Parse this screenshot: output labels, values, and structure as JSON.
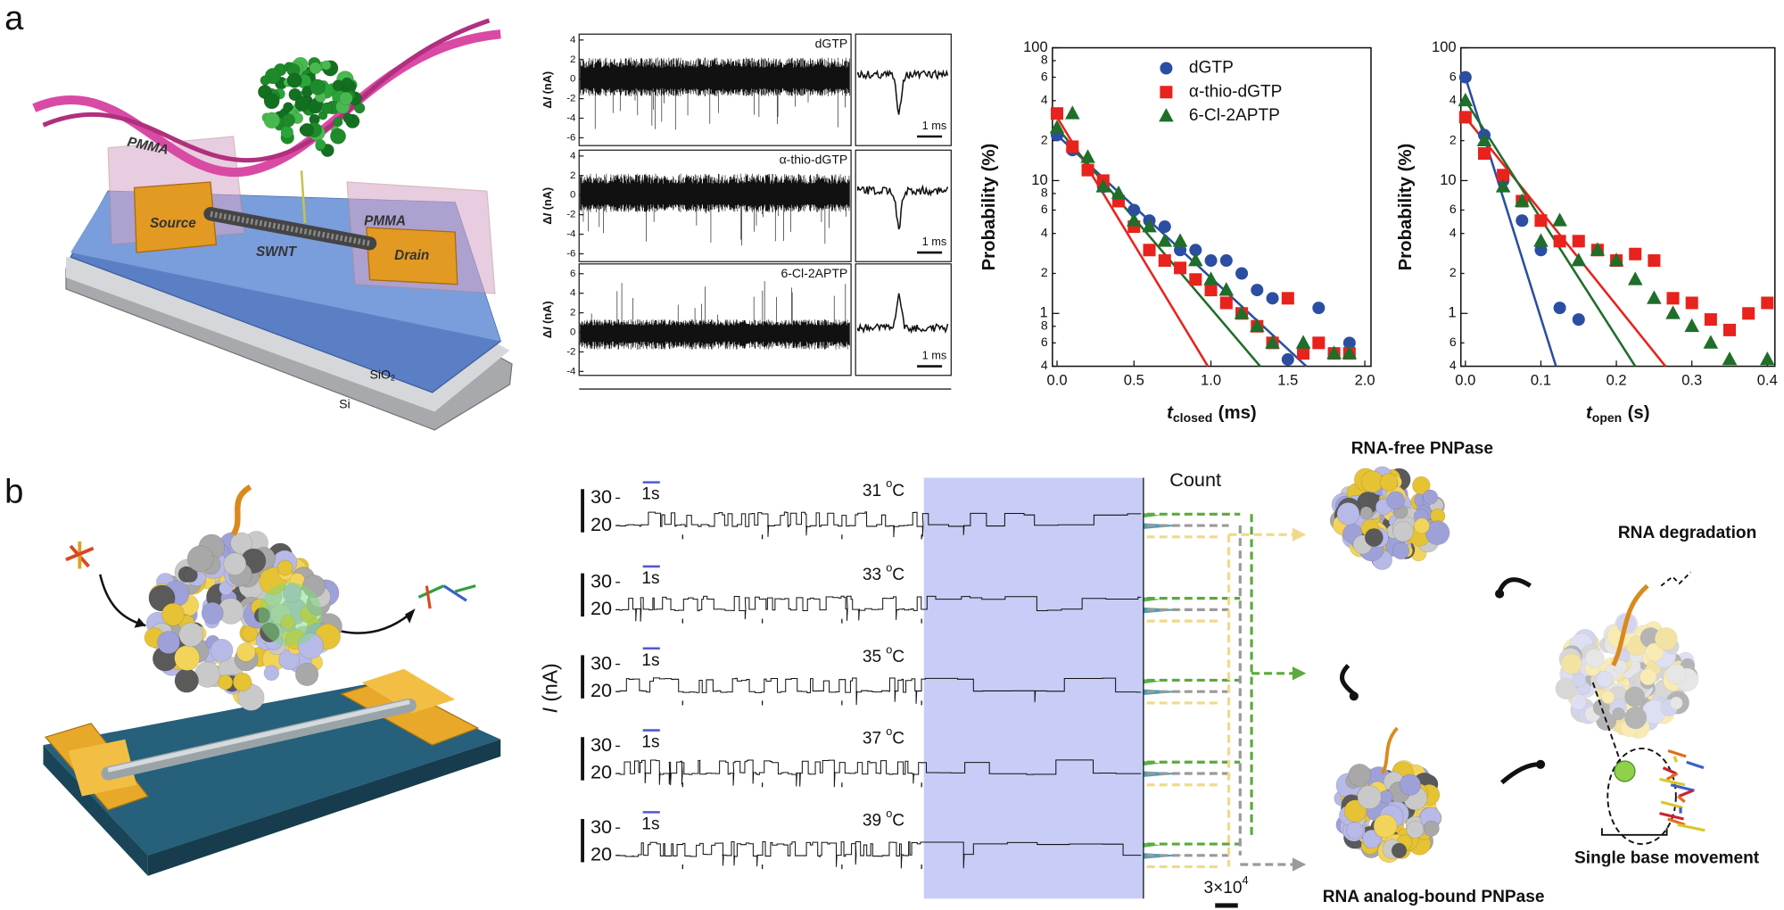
{
  "figure": {
    "panel_a": {
      "label": "a",
      "device": {
        "pmma_left": "PMMA",
        "pmma_right": "PMMA",
        "source": "Source",
        "drain": "Drain",
        "swnt": "SWNT",
        "sio2": {
          "base": "SiO",
          "sub": "2"
        },
        "si": "Si"
      },
      "traces": {
        "ylabel_parts": [
          "Δ",
          "I",
          " (nA)"
        ],
        "panels": [
          {
            "name": "dGTP",
            "ylim": [
              -6.8,
              4.6
            ],
            "yticks": [
              4,
              2,
              0,
              -2,
              -4,
              -6
            ],
            "scale_bar": "1 ms"
          },
          {
            "name": "α-thio-dGTP",
            "ylim": [
              -6.8,
              4.6
            ],
            "yticks": [
              4,
              2,
              0,
              -2,
              -4,
              -6
            ],
            "scale_bar": "1 ms"
          },
          {
            "name": "6-Cl-2APTP",
            "ylim": [
              -4.4,
              7
            ],
            "yticks": [
              6,
              4,
              2,
              0,
              -2,
              -4
            ],
            "scale_bar": "1 ms"
          }
        ]
      }
    },
    "panel_b": {
      "label": "b",
      "count_label": "Count",
      "ylabel_parts": [
        "I",
        " (nA)"
      ],
      "time_bar": "1s",
      "count_bar": {
        "base": "3×10",
        "exp": "4"
      },
      "degree": "o",
      "unit": "C",
      "rows": [
        {
          "temp": "31",
          "level_ticks": [
            30,
            20
          ]
        },
        {
          "temp": "33",
          "level_ticks": [
            30,
            20
          ]
        },
        {
          "temp": "35",
          "level_ticks": [
            30,
            20
          ]
        },
        {
          "temp": "37",
          "level_ticks": [
            30,
            20
          ]
        },
        {
          "temp": "39",
          "level_ticks": [
            30,
            20
          ]
        }
      ],
      "states": {
        "free": "RNA-free PNPase",
        "degradation": "RNA degradation",
        "bound": "RNA analog-bound PNPase",
        "movement": "Single base movement"
      }
    }
  },
  "chart_data": [
    {
      "type": "scatter",
      "log_y": true,
      "ylabel": "Probability (%)",
      "xlabel": {
        "symbol": "t",
        "subscript": "closed",
        "unit": "(ms)"
      },
      "xlim": [
        -0.03,
        2.04
      ],
      "ylim": [
        0.4,
        100
      ],
      "xticks": [
        {
          "value": 0,
          "label": "0.0"
        },
        0.5,
        {
          "value": 1,
          "label": "1.0"
        },
        1.5,
        {
          "value": 2,
          "label": "2.0"
        }
      ],
      "yticks": [
        {
          "value": 0.4,
          "label": "4"
        },
        {
          "value": 0.6,
          "label": "6"
        },
        {
          "value": 0.8,
          "label": "8"
        },
        1,
        2,
        4,
        6,
        8,
        10,
        {
          "value": 20,
          "label": "2"
        },
        {
          "value": 40,
          "label": "4"
        },
        {
          "value": 60,
          "label": "6"
        },
        {
          "value": 80,
          "label": "8"
        },
        100
      ],
      "legend": "upper right",
      "series": [
        {
          "name": "dGTP",
          "color": "#2b4ea2",
          "marker": "circle",
          "x": [
            0,
            0.1,
            0.2,
            0.3,
            0.4,
            0.5,
            0.6,
            0.7,
            0.8,
            0.9,
            1.0,
            1.1,
            1.2,
            1.3,
            1.4,
            1.5,
            1.7,
            1.8,
            1.9
          ],
          "values": [
            22,
            17,
            12,
            9,
            7,
            6,
            5,
            4.5,
            3,
            3,
            2.5,
            2.5,
            2,
            1.5,
            1.3,
            0.45,
            1.1,
            0.5,
            0.6
          ],
          "fit": {
            "x": [
              0,
              1.62
            ],
            "y": [
              22,
              0.4
            ]
          }
        },
        {
          "name": "α-thio-dGTP",
          "color": "#e8221c",
          "marker": "square",
          "x": [
            0,
            0.1,
            0.2,
            0.3,
            0.4,
            0.5,
            0.6,
            0.7,
            0.8,
            0.9,
            1.0,
            1.1,
            1.2,
            1.3,
            1.4,
            1.5,
            1.6,
            1.7,
            1.8,
            1.9
          ],
          "values": [
            32,
            18,
            12,
            10,
            7,
            4.5,
            3,
            2.5,
            2.2,
            1.8,
            1.5,
            1.2,
            1,
            0.8,
            0.6,
            1.3,
            0.5,
            0.6,
            0.5,
            0.5
          ],
          "fit": {
            "x": [
              0,
              0.98
            ],
            "y": [
              30,
              0.4
            ]
          }
        },
        {
          "name": "6-Cl-2APTP",
          "color": "#1f6e2a",
          "marker": "triangle",
          "x": [
            0,
            0.1,
            0.2,
            0.3,
            0.4,
            0.5,
            0.6,
            0.7,
            0.8,
            0.9,
            1.0,
            1.1,
            1.2,
            1.3,
            1.4,
            1.6,
            1.8,
            1.9
          ],
          "values": [
            25,
            32,
            15,
            9,
            8,
            5,
            4.5,
            3.5,
            3.5,
            2.5,
            1.8,
            1.5,
            1,
            0.8,
            0.6,
            0.6,
            0.5,
            0.5
          ],
          "fit": {
            "x": [
              0,
              1.32
            ],
            "y": [
              25,
              0.4
            ]
          }
        }
      ]
    },
    {
      "type": "scatter",
      "log_y": true,
      "ylabel": "Probability (%)",
      "xlabel": {
        "symbol": "t",
        "subscript": "open",
        "unit": "(s)"
      },
      "xlim": [
        -0.006,
        0.41
      ],
      "ylim": [
        0.4,
        100
      ],
      "xticks": [
        {
          "value": 0,
          "label": "0.0"
        },
        0.1,
        0.2,
        0.3,
        0.4
      ],
      "yticks": [
        {
          "value": 0.4,
          "label": "4"
        },
        {
          "value": 0.6,
          "label": "6"
        },
        1,
        2,
        4,
        6,
        10,
        {
          "value": 20,
          "label": "2"
        },
        {
          "value": 40,
          "label": "4"
        },
        {
          "value": 60,
          "label": "6"
        },
        100
      ],
      "legend": false,
      "series": [
        {
          "color": "#2b4ea2",
          "marker": "circle",
          "x": [
            0,
            0.025,
            0.05,
            0.075,
            0.1,
            0.125,
            0.15
          ],
          "values": [
            60,
            22,
            10,
            5,
            3,
            1.1,
            0.9
          ],
          "fit": {
            "x": [
              0,
              0.12
            ],
            "y": [
              60,
              0.4
            ]
          }
        },
        {
          "color": "#e8221c",
          "marker": "square",
          "x": [
            0,
            0.025,
            0.05,
            0.075,
            0.1,
            0.125,
            0.15,
            0.175,
            0.2,
            0.225,
            0.25,
            0.275,
            0.3,
            0.325,
            0.35,
            0.375,
            0.4
          ],
          "values": [
            30,
            16,
            11,
            7,
            5,
            3.5,
            3.5,
            3,
            2.5,
            2.8,
            2.5,
            1.3,
            1.2,
            0.9,
            0.75,
            1,
            1.2
          ],
          "fit": {
            "x": [
              0,
              0.265
            ],
            "y": [
              30,
              0.4
            ]
          }
        },
        {
          "color": "#1f6e2a",
          "marker": "triangle",
          "x": [
            0,
            0.025,
            0.05,
            0.075,
            0.1,
            0.125,
            0.15,
            0.175,
            0.2,
            0.225,
            0.25,
            0.275,
            0.3,
            0.325,
            0.35,
            0.4
          ],
          "values": [
            40,
            20,
            9,
            7,
            3.5,
            5,
            2.5,
            3,
            2.5,
            1.8,
            1.3,
            1,
            0.8,
            0.6,
            0.45,
            0.45
          ],
          "fit": {
            "x": [
              0,
              0.225
            ],
            "y": [
              40,
              0.4
            ]
          }
        }
      ]
    }
  ]
}
